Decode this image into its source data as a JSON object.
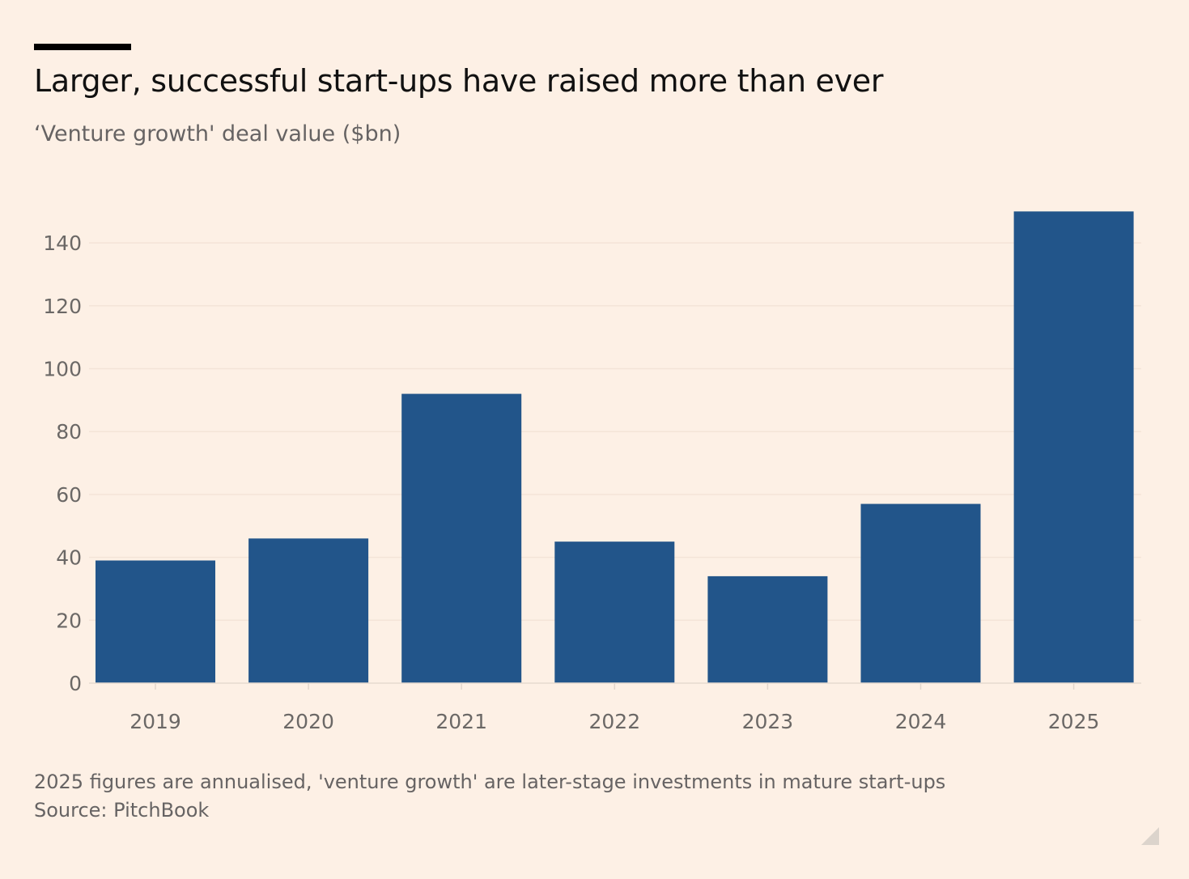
{
  "header": {
    "title": "Larger, successful start-ups have raised more than ever",
    "subtitle": "‘Venture growth' deal value ($bn)"
  },
  "footer": {
    "note": "2025 figures are annualised, 'venture growth' are later-stage investments in mature start-ups",
    "source": "Source: PitchBook"
  },
  "colors": {
    "background": "#fdf0e5",
    "bar": "#22558a",
    "gridline": "#f4e4d8",
    "tick_text": "#6b6866"
  },
  "chart_data": {
    "type": "bar",
    "title": "Larger, successful start-ups have raised more than ever",
    "subtitle": "‘Venture growth' deal value ($bn)",
    "xlabel": "",
    "ylabel": "",
    "categories": [
      "2019",
      "2020",
      "2021",
      "2022",
      "2023",
      "2024",
      "2025"
    ],
    "values": [
      39,
      46,
      92,
      45,
      34,
      57,
      150
    ],
    "ylim": [
      0,
      150
    ],
    "yticks": [
      0,
      20,
      40,
      60,
      80,
      100,
      120,
      140
    ],
    "grid": true,
    "legend": "none"
  }
}
